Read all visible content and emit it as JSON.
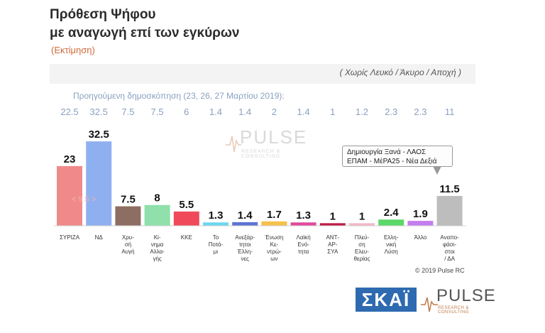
{
  "chart_data": {
    "type": "bar",
    "title": "Πρόθεση Ψήφου",
    "subtitle": "με αναγωγή επί των εγκύρων",
    "estimate_note": "(Εκτίμηση)",
    "exclusion_note": "( Χωρίς Λευκό / Άκυρο / Αποχή )",
    "previous_label": "Προηγούμενη δημοσκόπηση (23, 26, 27 Μαρτίου 2019):",
    "categories": [
      [
        "ΣΥΡΙΖΑ"
      ],
      [
        "ΝΔ"
      ],
      [
        "Χρυ-",
        "σή",
        "Αυγή"
      ],
      [
        "Κί-",
        "νημα",
        "Αλλα-",
        "γής"
      ],
      [
        "ΚΚΕ"
      ],
      [
        "Το",
        "Ποτά-",
        "μι"
      ],
      [
        "Ανεξάρ-",
        "τητοι",
        "Έλλη-",
        "νες"
      ],
      [
        "Ένωση",
        "Κε-",
        "ντρώ-",
        "ων"
      ],
      [
        "Λαϊκή",
        "Ενό-",
        "τητα"
      ],
      [
        "ΑΝΤ-",
        "ΑΡ-",
        "ΣΥΑ"
      ],
      [
        "Πλεύ-",
        "ση",
        "Ελευ-",
        "θερίας"
      ],
      [
        "Ελλη-",
        "νική",
        "Λύση"
      ],
      [
        "Άλλο"
      ],
      [
        "Αναπο-",
        "φάσι-",
        "στοι",
        "/ ΔΑ"
      ]
    ],
    "values": [
      23,
      32.5,
      7.5,
      8,
      5.5,
      1.3,
      1.4,
      1.7,
      1.3,
      1,
      1,
      2.4,
      1.9,
      11.5
    ],
    "value_labels": [
      "23",
      "32.5",
      "7.5",
      "8",
      "5.5",
      "1.3",
      "1.4",
      "1.7",
      "1.3",
      "1",
      "1",
      "2.4",
      "1.9",
      "11.5"
    ],
    "previous_values": [
      "22.5",
      "32.5",
      "7.5",
      "7.5",
      "6",
      "1.4",
      "1.4",
      "2",
      "1.4",
      "1",
      "1.2",
      "2.3",
      "2.3",
      "11"
    ],
    "colors": [
      "#f08a8a",
      "#8fb0f0",
      "#8c6f62",
      "#8fe0aa",
      "#f04a5a",
      "#6ad8ee",
      "#5f73d6",
      "#f6c04a",
      "#e04a9a",
      "#c01a44",
      "#f5b6c6",
      "#5ad86a",
      "#c47ef0",
      "#bdbdbd"
    ],
    "diff_annotation": "< 9.5 >",
    "ylim": [
      0,
      35
    ]
  },
  "legend_text": [
    "Δημιουργία Ξανά - ΛΑΟΣ",
    "ΕΠΑΜ - ΜέΡΑ25 - Νέα Δεξιά"
  ],
  "watermark": {
    "text": "PULSE",
    "sub": "RESEARCH & CONSULTING"
  },
  "copyright": "© 2019 Pulse RC",
  "logos": {
    "skai": "ΣΚΑΪ",
    "pulse": "PULSE",
    "pulse_sub": "RESEARCH & CONSULTING"
  }
}
